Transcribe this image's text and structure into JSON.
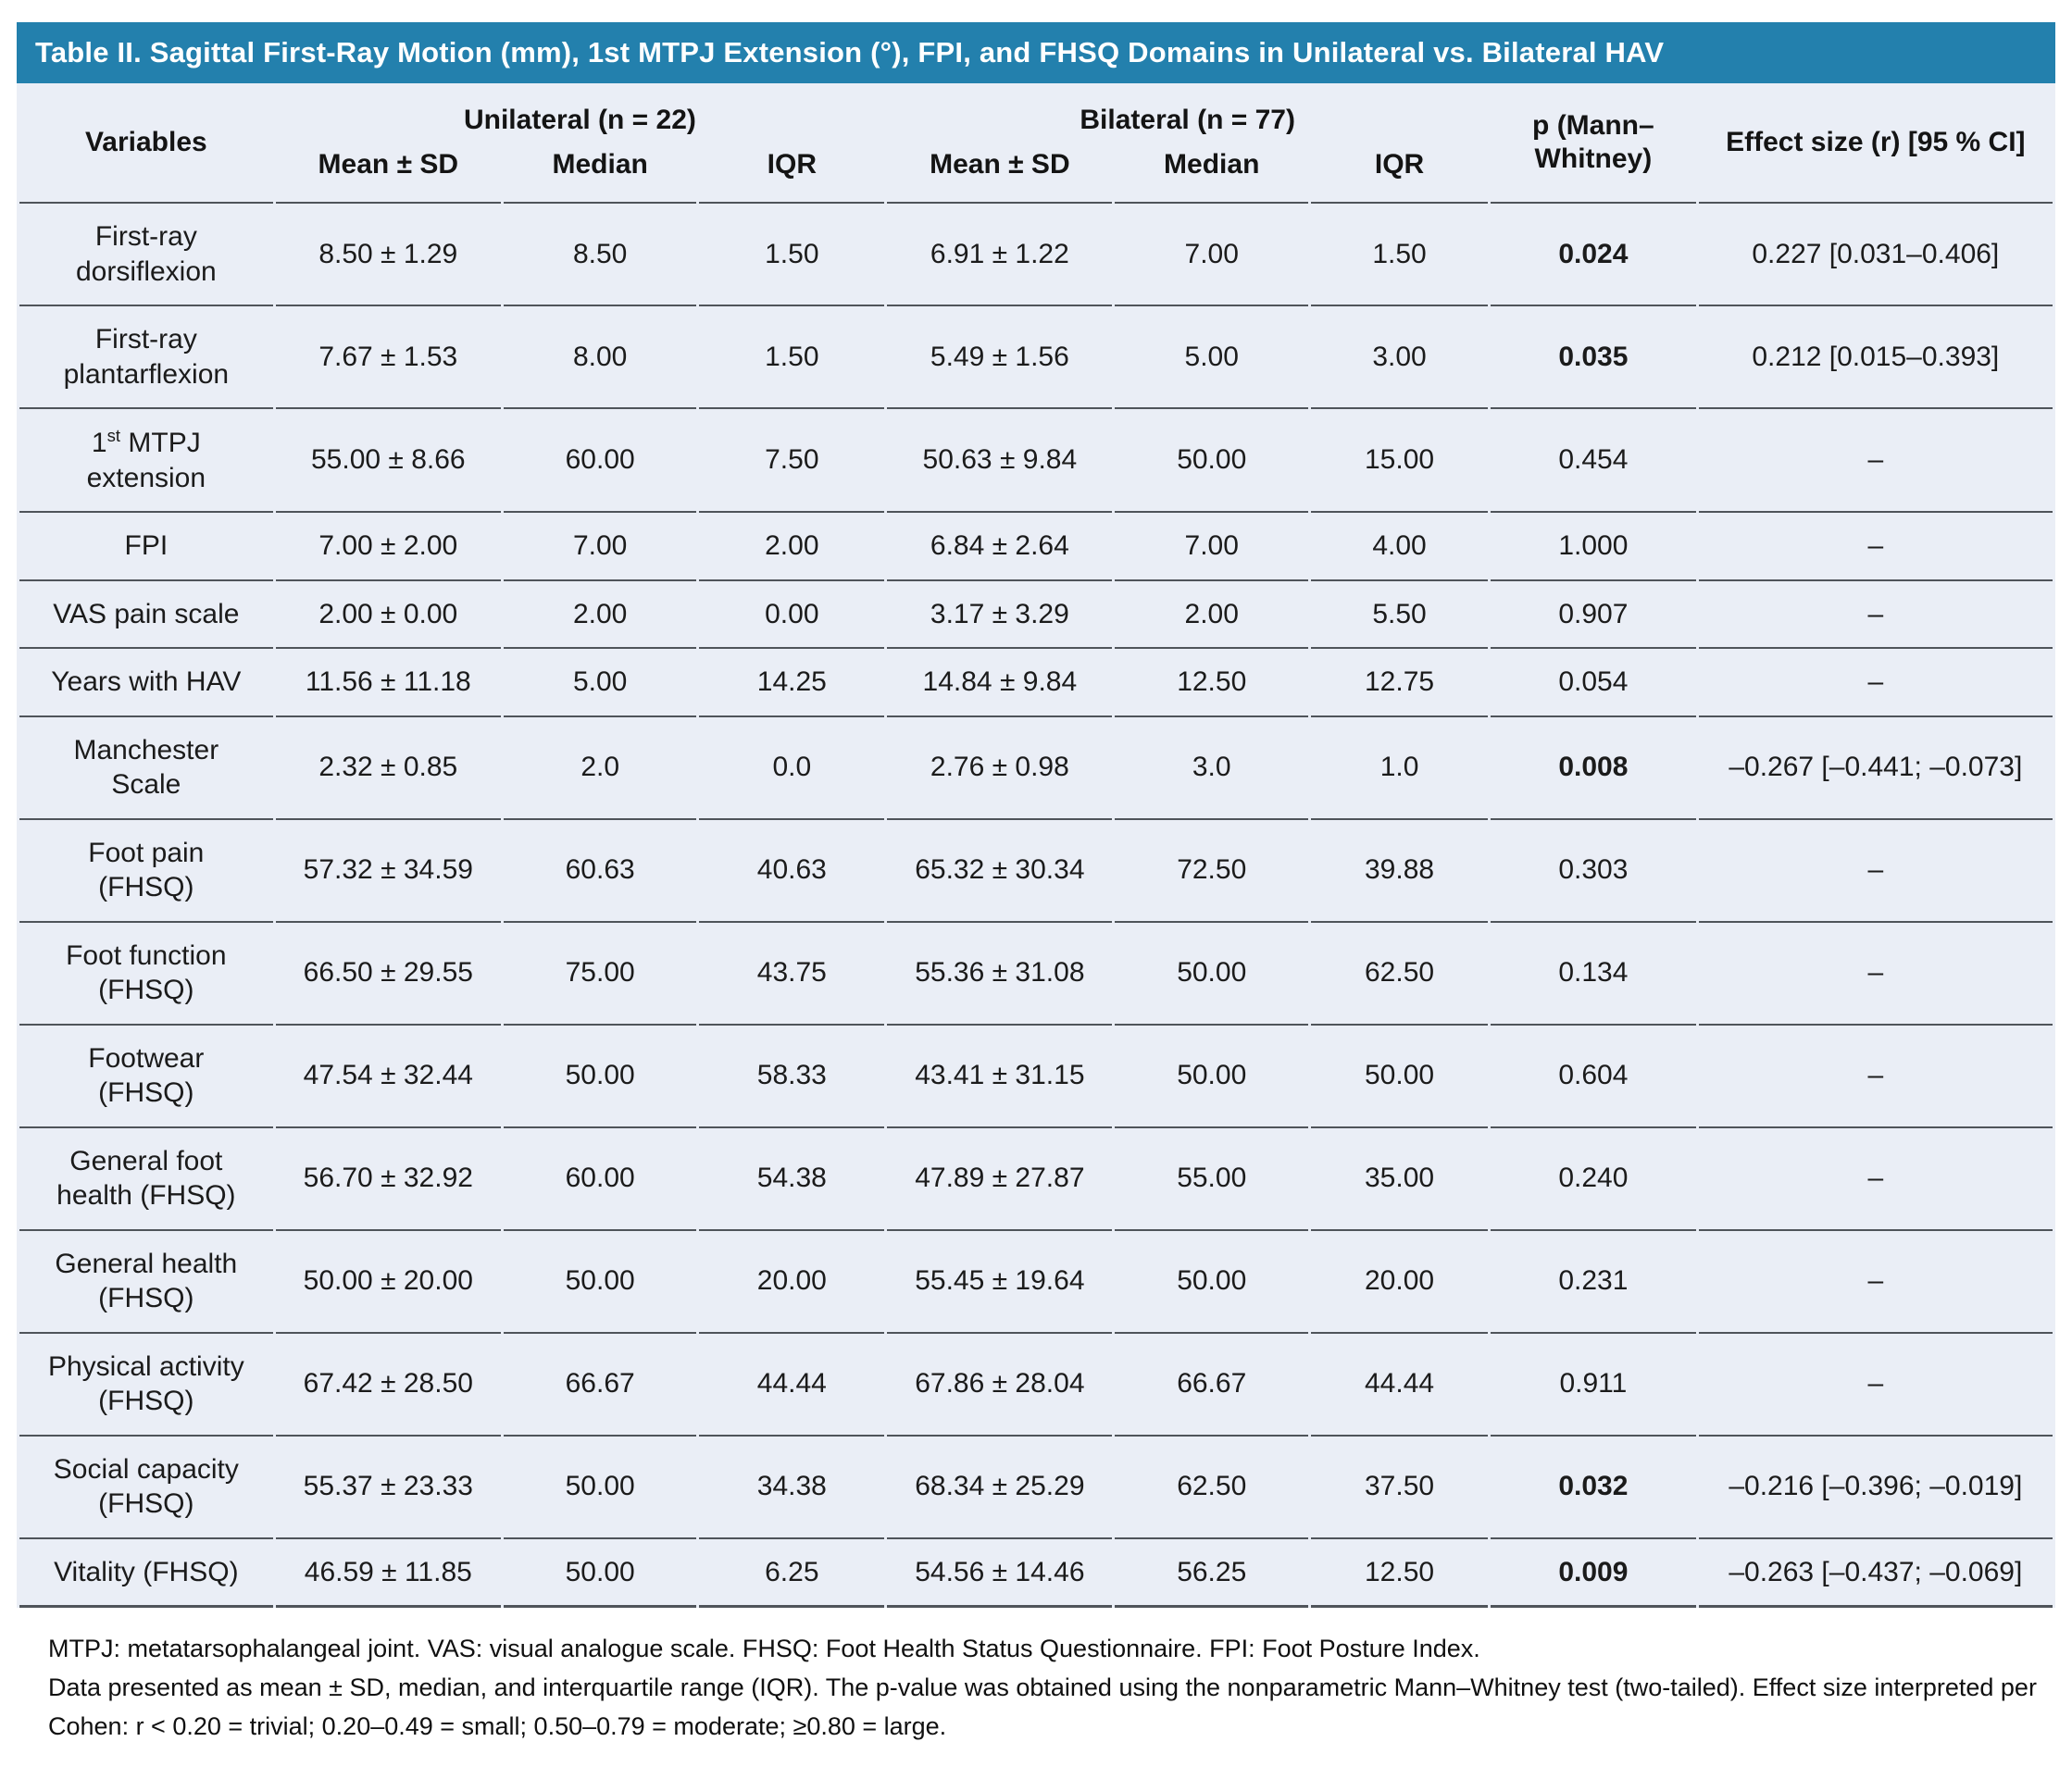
{
  "title": "Table II. Sagittal First-Ray Motion (mm), 1st MTPJ Extension (°), FPI, and FHSQ Domains in Unilateral vs. Bilateral HAV",
  "colors": {
    "title_bar": "#2380ad",
    "table_background": "#eaeef6",
    "row_line": "#4f545a",
    "title_text": "#ffffff"
  },
  "table": {
    "col_headers": {
      "variables": "Variables",
      "group1": "Unilateral (n = 22)",
      "group2": "Bilateral (n = 77)",
      "sub": [
        "Mean ± SD",
        "Median",
        "IQR",
        "Mean ± SD",
        "Median",
        "IQR"
      ],
      "p": "p (Mann–Whitney)",
      "effect": "Effect size (r) [95 % CI]"
    },
    "rows": [
      {
        "variable": "First-ray dorsiflexion",
        "cells": [
          "8.50 ± 1.29",
          "8.50",
          "1.50",
          "6.91 ± 1.22",
          "7.00",
          "1.50"
        ],
        "p": "0.024",
        "p_bold": true,
        "effect": "0.227 [0.031–0.406]"
      },
      {
        "variable": "First-ray plantarflexion",
        "cells": [
          "7.67 ± 1.53",
          "8.00",
          "1.50",
          "5.49 ± 1.56",
          "5.00",
          "3.00"
        ],
        "p": "0.035",
        "p_bold": true,
        "effect": "0.212 [0.015–0.393]"
      },
      {
        "variable": {
          "pre": "1",
          "sup": "st",
          "post": " MTPJ extension"
        },
        "cells": [
          "55.00 ± 8.66",
          "60.00",
          "7.50",
          "50.63 ± 9.84",
          "50.00",
          "15.00"
        ],
        "p": "0.454",
        "p_bold": false,
        "effect": "–"
      },
      {
        "variable": "FPI",
        "cells": [
          "7.00 ± 2.00",
          "7.00",
          "2.00",
          "6.84 ± 2.64",
          "7.00",
          "4.00"
        ],
        "p": "1.000",
        "p_bold": false,
        "effect": "–"
      },
      {
        "variable": "VAS pain scale",
        "cells": [
          "2.00 ± 0.00",
          "2.00",
          "0.00",
          "3.17 ± 3.29",
          "2.00",
          "5.50"
        ],
        "p": "0.907",
        "p_bold": false,
        "effect": "–"
      },
      {
        "variable": "Years with HAV",
        "cells": [
          "11.56 ± 11.18",
          "5.00",
          "14.25",
          "14.84 ± 9.84",
          "12.50",
          "12.75"
        ],
        "p": "0.054",
        "p_bold": false,
        "effect": "–"
      },
      {
        "variable": "Manchester Scale",
        "cells": [
          "2.32 ± 0.85",
          "2.0",
          "0.0",
          "2.76 ± 0.98",
          "3.0",
          "1.0"
        ],
        "p": "0.008",
        "p_bold": true,
        "effect": "–0.267 [–0.441; –0.073]"
      },
      {
        "variable": "Foot pain (FHSQ)",
        "cells": [
          "57.32 ± 34.59",
          "60.63",
          "40.63",
          "65.32 ± 30.34",
          "72.50",
          "39.88"
        ],
        "p": "0.303",
        "p_bold": false,
        "effect": "–"
      },
      {
        "variable": "Foot function (FHSQ)",
        "cells": [
          "66.50 ± 29.55",
          "75.00",
          "43.75",
          "55.36 ± 31.08",
          "50.00",
          "62.50"
        ],
        "p": "0.134",
        "p_bold": false,
        "effect": "–"
      },
      {
        "variable": "Footwear (FHSQ)",
        "cells": [
          "47.54 ± 32.44",
          "50.00",
          "58.33",
          "43.41 ± 31.15",
          "50.00",
          "50.00"
        ],
        "p": "0.604",
        "p_bold": false,
        "effect": "–"
      },
      {
        "variable": "General foot health (FHSQ)",
        "cells": [
          "56.70 ± 32.92",
          "60.00",
          "54.38",
          "47.89 ± 27.87",
          "55.00",
          "35.00"
        ],
        "p": "0.240",
        "p_bold": false,
        "effect": "–"
      },
      {
        "variable": "General health (FHSQ)",
        "cells": [
          "50.00 ± 20.00",
          "50.00",
          "20.00",
          "55.45 ± 19.64",
          "50.00",
          "20.00"
        ],
        "p": "0.231",
        "p_bold": false,
        "effect": "–"
      },
      {
        "variable": "Physical activity (FHSQ)",
        "cells": [
          "67.42 ± 28.50",
          "66.67",
          "44.44",
          "67.86 ± 28.04",
          "66.67",
          "44.44"
        ],
        "p": "0.911",
        "p_bold": false,
        "effect": "–"
      },
      {
        "variable": "Social capacity (FHSQ)",
        "cells": [
          "55.37 ± 23.33",
          "50.00",
          "34.38",
          "68.34 ± 25.29",
          "62.50",
          "37.50"
        ],
        "p": "0.032",
        "p_bold": true,
        "effect": "–0.216 [–0.396; –0.019]"
      },
      {
        "variable": "Vitality (FHSQ)",
        "cells": [
          "46.59 ± 11.85",
          "50.00",
          "6.25",
          "54.56 ± 14.46",
          "56.25",
          "12.50"
        ],
        "p": "0.009",
        "p_bold": true,
        "effect": "–0.263 [–0.437; –0.069]"
      }
    ]
  },
  "footnotes": [
    "MTPJ: metatarsophalangeal joint. VAS: visual analogue scale. FHSQ: Foot Health Status Questionnaire. FPI: Foot Posture Index.",
    "Data presented as mean ± SD, median, and interquartile range (IQR). The p-value was obtained using the nonparametric Mann–Whitney test (two-tailed). Effect size interpreted per Cohen: r < 0.20 = trivial; 0.20–0.49 = small; 0.50–0.79 = moderate; ≥0.80 = large."
  ]
}
